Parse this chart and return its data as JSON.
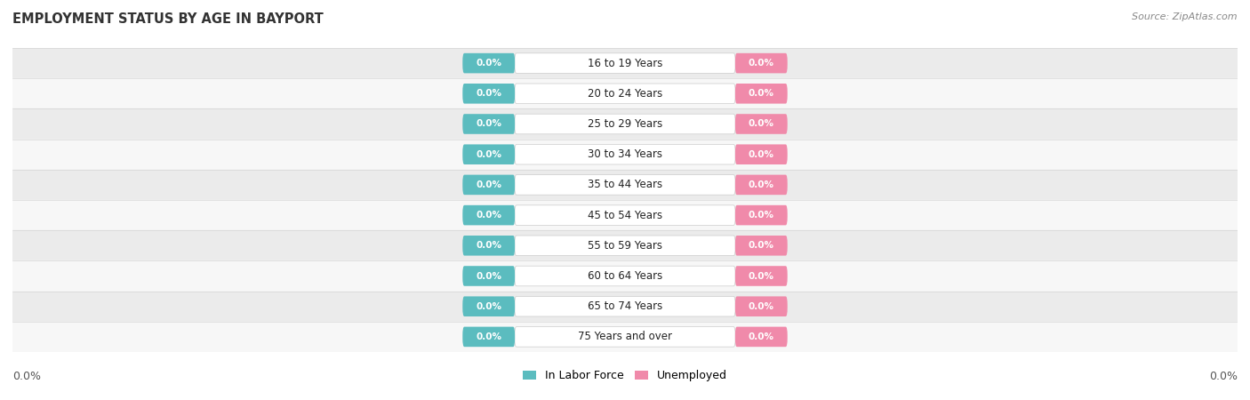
{
  "title": "EMPLOYMENT STATUS BY AGE IN BAYPORT",
  "source": "Source: ZipAtlas.com",
  "categories": [
    "16 to 19 Years",
    "20 to 24 Years",
    "25 to 29 Years",
    "30 to 34 Years",
    "35 to 44 Years",
    "45 to 54 Years",
    "55 to 59 Years",
    "60 to 64 Years",
    "65 to 74 Years",
    "75 Years and over"
  ],
  "in_labor_force": [
    0.0,
    0.0,
    0.0,
    0.0,
    0.0,
    0.0,
    0.0,
    0.0,
    0.0,
    0.0
  ],
  "unemployed": [
    0.0,
    0.0,
    0.0,
    0.0,
    0.0,
    0.0,
    0.0,
    0.0,
    0.0,
    0.0
  ],
  "labor_force_color": "#5bbcbf",
  "unemployed_color": "#f08aaa",
  "row_bg_light": "#f7f7f7",
  "row_bg_dark": "#ebebeb",
  "title_fontsize": 10.5,
  "source_fontsize": 8,
  "label_fontsize": 8.5,
  "tick_fontsize": 9,
  "legend_labor_force": "In Labor Force",
  "legend_unemployed": "Unemployed"
}
